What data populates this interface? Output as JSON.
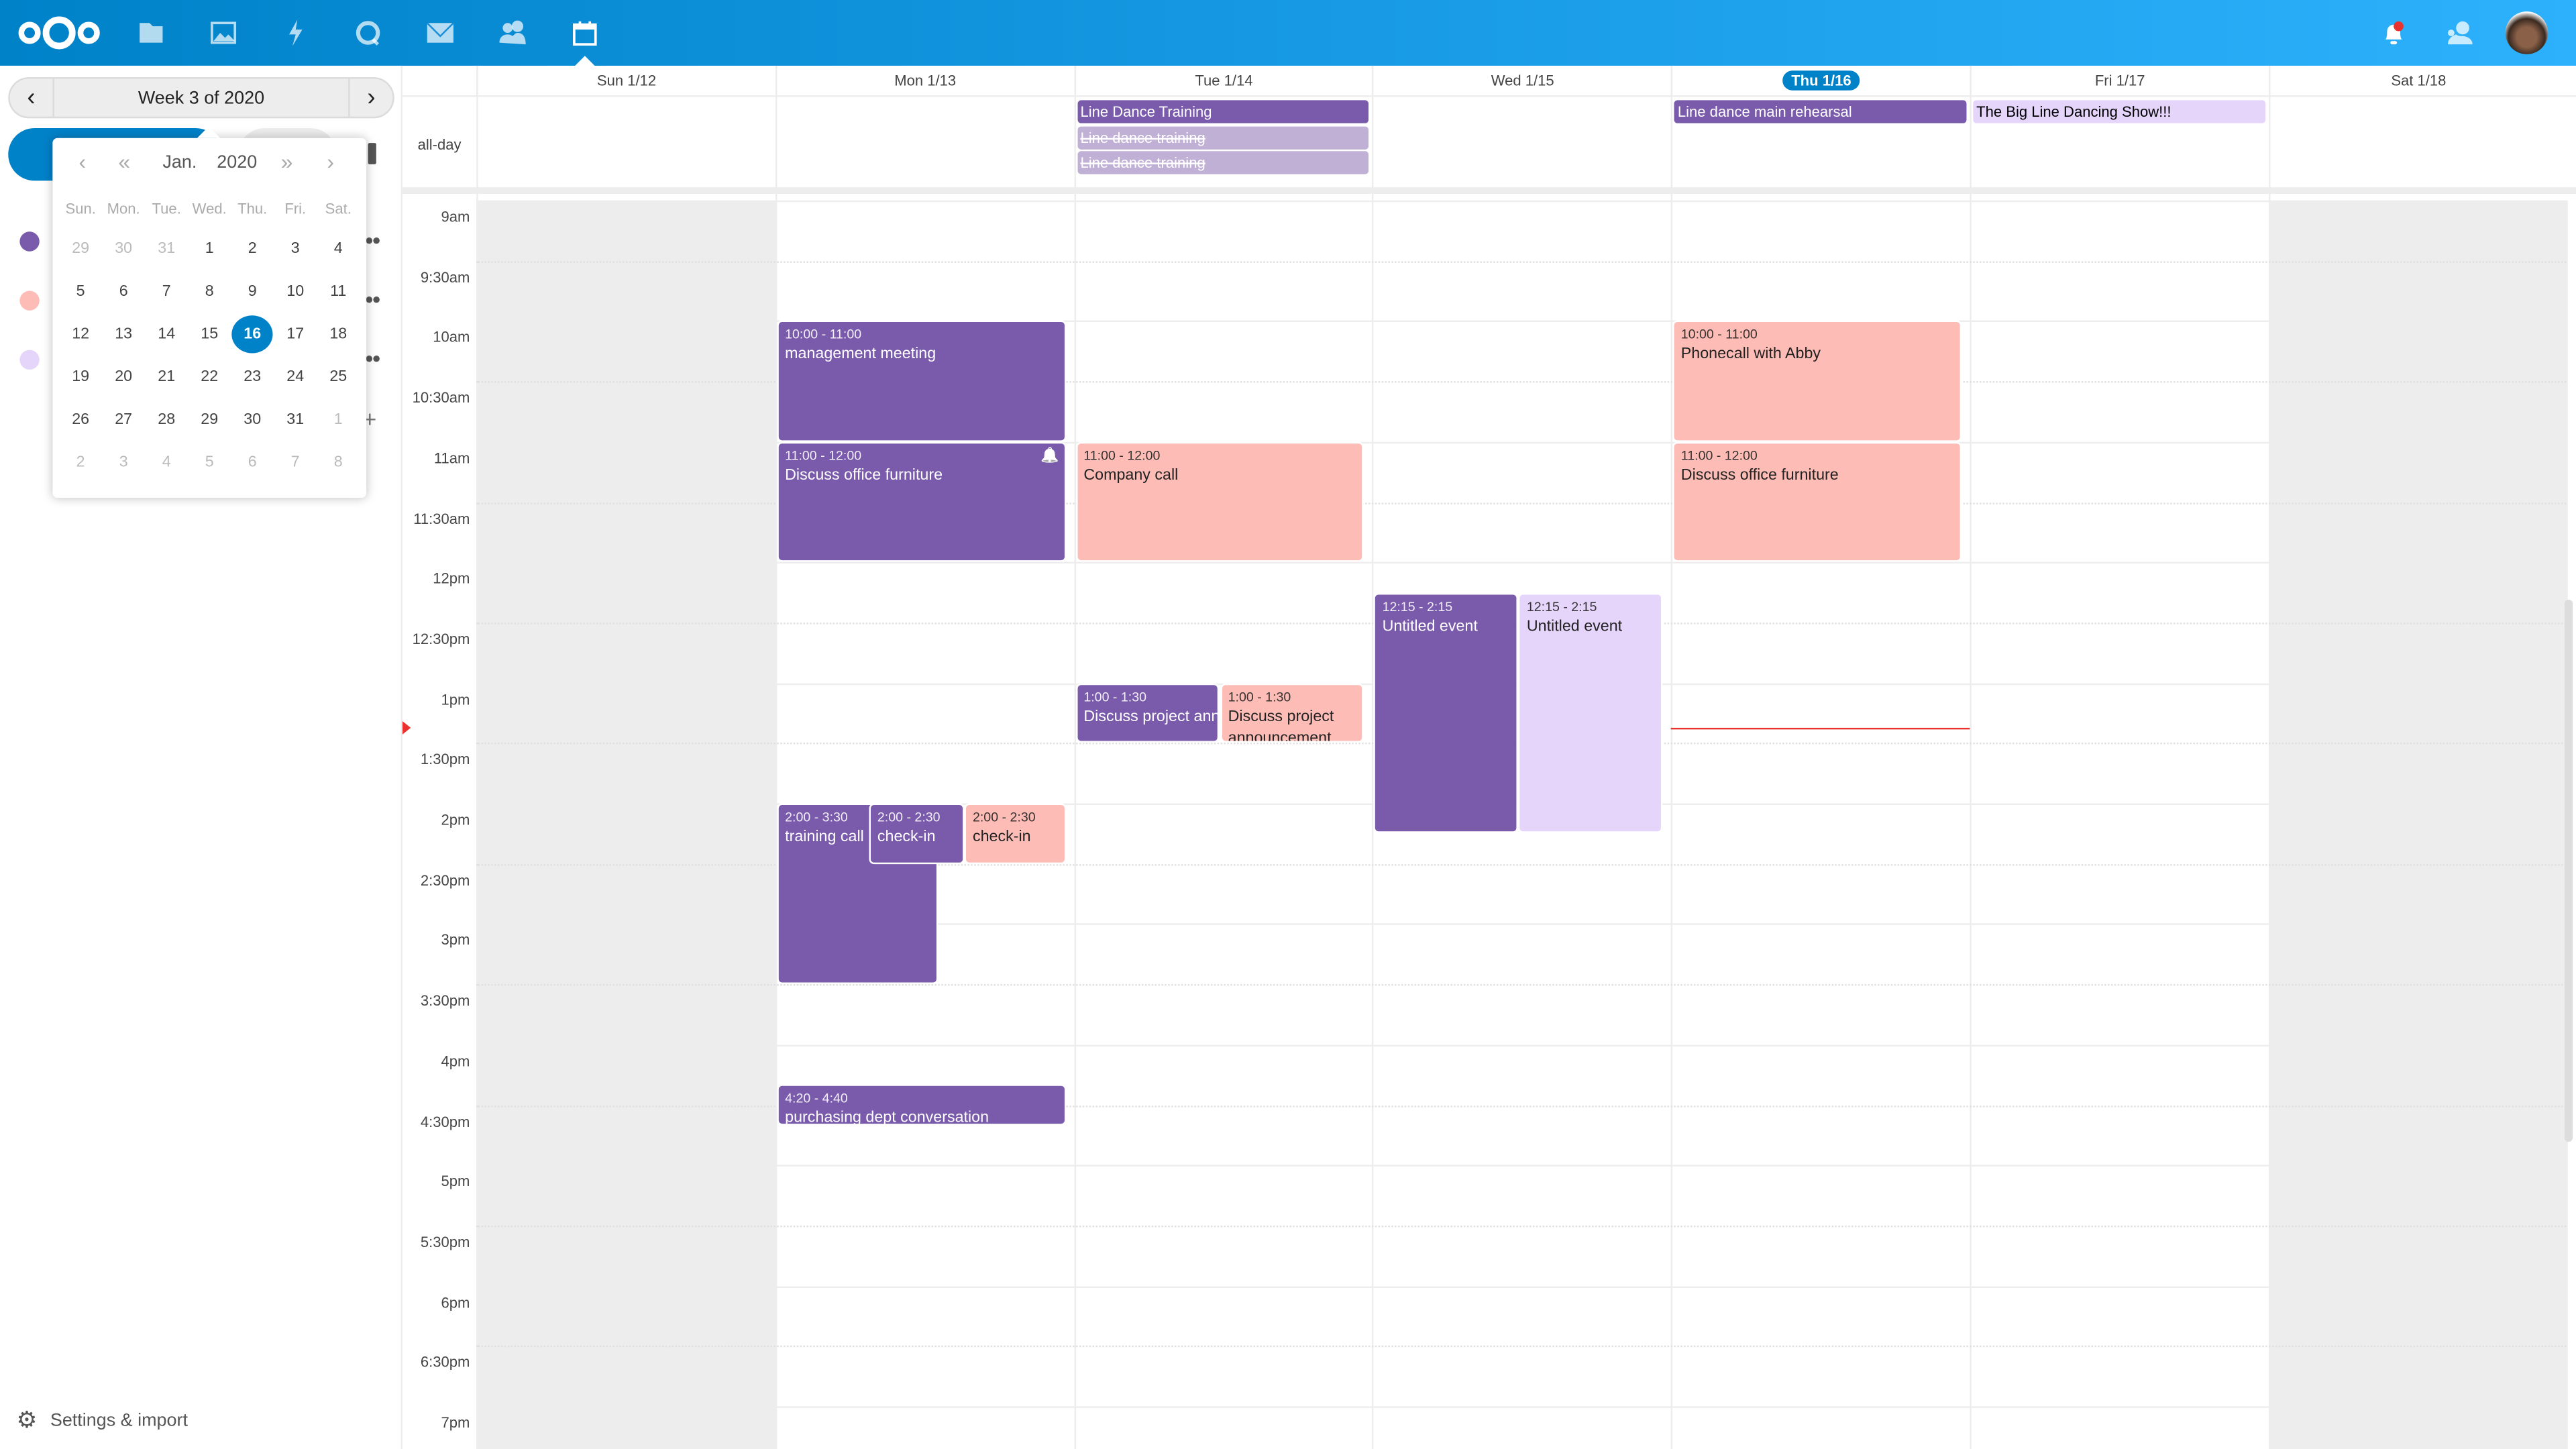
{
  "topbar": {
    "apps": [
      {
        "name": "files",
        "icon": "folder-icon"
      },
      {
        "name": "photos",
        "icon": "image-icon"
      },
      {
        "name": "activity",
        "icon": "lightning-icon"
      },
      {
        "name": "talk",
        "icon": "talk-icon"
      },
      {
        "name": "mail",
        "icon": "mail-icon"
      },
      {
        "name": "contacts",
        "icon": "contacts-icon"
      },
      {
        "name": "calendar",
        "icon": "calendar-icon",
        "active": true
      }
    ],
    "right_icons": [
      "notifications-icon",
      "contacts-menu-icon",
      "avatar"
    ],
    "notification_badge_color": "#e9322d"
  },
  "sidebar": {
    "week_label": "Week 3 of 2020",
    "calendar_colors": [
      "#795aab",
      "#fdbdb6",
      "#e5d5fb"
    ],
    "settings_label": "Settings & import"
  },
  "datepicker": {
    "month": "Jan.",
    "year": "2020",
    "weekdays": [
      "Sun.",
      "Mon.",
      "Tue.",
      "Wed.",
      "Thu.",
      "Fri.",
      "Sat."
    ],
    "days": [
      [
        "29",
        "30",
        "31",
        "1",
        "2",
        "3",
        "4"
      ],
      [
        "5",
        "6",
        "7",
        "8",
        "9",
        "10",
        "11"
      ],
      [
        "12",
        "13",
        "14",
        "15",
        "16",
        "17",
        "18"
      ],
      [
        "19",
        "20",
        "21",
        "22",
        "23",
        "24",
        "25"
      ],
      [
        "26",
        "27",
        "28",
        "29",
        "30",
        "31",
        "1"
      ],
      [
        "2",
        "3",
        "4",
        "5",
        "6",
        "7",
        "8"
      ]
    ],
    "selected": "16"
  },
  "calendar": {
    "allday_label": "all-day",
    "days": [
      "Sun 1/12",
      "Mon 1/13",
      "Tue 1/14",
      "Wed 1/15",
      "Thu 1/16",
      "Fri 1/17",
      "Sat 1/18"
    ],
    "today_index": 4,
    "time_labels": [
      "9am",
      "9:30am",
      "10am",
      "10:30am",
      "11am",
      "11:30am",
      "12pm",
      "12:30pm",
      "1pm",
      "1:30pm",
      "2pm",
      "2:30pm",
      "3pm",
      "3:30pm",
      "4pm",
      "4:30pm",
      "5pm",
      "5:30pm",
      "6pm",
      "6:30pm",
      "7pm"
    ],
    "now": "1:22pm",
    "allday_events": [
      {
        "day": 2,
        "title": "Line Dance Training",
        "color": "#795aab",
        "text": "#fff"
      },
      {
        "day": 2,
        "title": "Line dance training",
        "color": "#c0b0d6",
        "text": "#fff",
        "strike": true
      },
      {
        "day": 2,
        "title": "Line dance training",
        "color": "#c0b0d6",
        "text": "#fff",
        "strike": true
      },
      {
        "day": 4,
        "title": "Line dance main rehearsal",
        "color": "#795aab",
        "text": "#fff"
      },
      {
        "day": 5,
        "title": "The Big Line Dancing Show!!!",
        "color": "#e5d5fb",
        "text": "#000"
      }
    ],
    "events": [
      {
        "day": 1,
        "time": "10:00 - 11:00",
        "title": "management meeting",
        "start": 10,
        "end": 11,
        "color": "#795aab",
        "text": "#fff"
      },
      {
        "day": 1,
        "time": "11:00 - 12:00",
        "title": "Discuss office furniture",
        "start": 11,
        "end": 12,
        "color": "#795aab",
        "text": "#fff",
        "alarm": true
      },
      {
        "day": 1,
        "time": "2:00 - 3:30",
        "title": "training call",
        "start": 14,
        "end": 15.5,
        "color": "#795aab",
        "text": "#fff"
      },
      {
        "day": 1,
        "time": "2:00 - 2:30",
        "title": "check-in",
        "start": 14,
        "end": 14.5,
        "color": "#795aab",
        "text": "#fff"
      },
      {
        "day": 1,
        "time": "2:00 - 2:30",
        "title": "check-in",
        "start": 14,
        "end": 14.5,
        "color": "#fdbdb6",
        "text": "#222"
      },
      {
        "day": 1,
        "time": "4:20 - 4:40",
        "title": "purchasing dept conversation",
        "start": 16.333,
        "end": 16.667,
        "color": "#795aab",
        "text": "#fff"
      },
      {
        "day": 2,
        "time": "11:00 - 12:00",
        "title": "Company call",
        "start": 11,
        "end": 12,
        "color": "#fdbdb6",
        "text": "#222"
      },
      {
        "day": 2,
        "time": "1:00 - 1:30",
        "title": "Discuss project announcement",
        "start": 13,
        "end": 13.5,
        "color": "#795aab",
        "text": "#fff"
      },
      {
        "day": 2,
        "time": "1:00 - 1:30",
        "title": "Discuss project announcement",
        "start": 13,
        "end": 13.5,
        "color": "#fdbdb6",
        "text": "#222"
      },
      {
        "day": 3,
        "time": "12:15 - 2:15",
        "title": "Untitled event",
        "start": 12.25,
        "end": 14.25,
        "color": "#795aab",
        "text": "#fff"
      },
      {
        "day": 3,
        "time": "12:15 - 2:15",
        "title": "Untitled event",
        "start": 12.25,
        "end": 14.25,
        "color": "#e5d5fb",
        "text": "#222"
      },
      {
        "day": 4,
        "time": "10:00 - 11:00",
        "title": "Phonecall with Abby",
        "start": 10,
        "end": 11,
        "color": "#fdbdb6",
        "text": "#222"
      },
      {
        "day": 4,
        "time": "11:00 - 12:00",
        "title": "Discuss office furniture",
        "start": 11,
        "end": 12,
        "color": "#fdbdb6",
        "text": "#222"
      }
    ]
  }
}
